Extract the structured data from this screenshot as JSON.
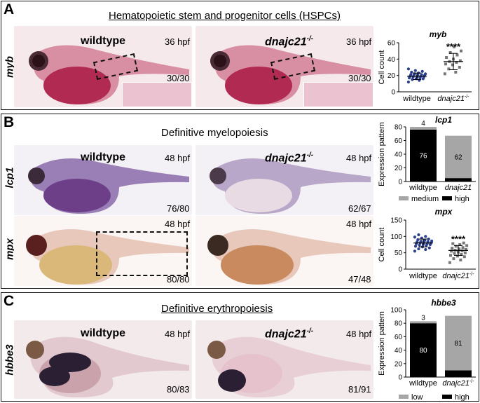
{
  "panels": [
    {
      "letter": "A",
      "title": "Hematopoietic stem and progenitor cells (HSPCs)",
      "rows": [
        {
          "label": "myb",
          "images": [
            {
              "genotype": "wildtype",
              "stage": "36 hpf",
              "count": "30/30"
            },
            {
              "genotype": "dnajc21",
              "genotype_sup": "-/-",
              "stage": "36 hpf",
              "count": "30/30"
            }
          ]
        }
      ]
    },
    {
      "letter": "B",
      "title": "Definitive myelopoiesis",
      "rows": [
        {
          "label": "lcp1",
          "images": [
            {
              "genotype": "wildtype",
              "stage": "48 hpf",
              "count": "76/80"
            },
            {
              "genotype": "dnajc21",
              "genotype_sup": "-/-",
              "stage": "48 hpf",
              "count": "62/67"
            }
          ]
        },
        {
          "label": "mpx",
          "images": [
            {
              "genotype": "",
              "stage": "48 hpf",
              "count": "80/80"
            },
            {
              "genotype": "",
              "stage": "48 hpf",
              "count": "47/48"
            }
          ]
        }
      ]
    },
    {
      "letter": "C",
      "title": "Definitive erythropoiesis",
      "rows": [
        {
          "label": "hbbe3",
          "images": [
            {
              "genotype": "wildtype",
              "stage": "48 hpf",
              "count": "80/83"
            },
            {
              "genotype": "dnajc21",
              "genotype_sup": "-/-",
              "stage": "48 hpf",
              "count": "81/91"
            }
          ]
        }
      ]
    }
  ],
  "chart_data": [
    {
      "type": "scatter",
      "title": "myb",
      "ylabel": "Cell count",
      "ylim": [
        0,
        60
      ],
      "yticks": [
        0,
        20,
        40,
        60
      ],
      "categories": [
        "wildtype",
        "dnajc21-/-"
      ],
      "significance": "****",
      "colors": [
        "#2b3f8c",
        "#777777"
      ],
      "series": [
        {
          "values": [
            12,
            14,
            15,
            16,
            16,
            17,
            17,
            18,
            18,
            18,
            19,
            19,
            20,
            20,
            20,
            21,
            21,
            22,
            22,
            23,
            24,
            25,
            26,
            28
          ],
          "mean": 19,
          "sd": 4
        },
        {
          "values": [
            22,
            24,
            28,
            30,
            33,
            34,
            36,
            37,
            38,
            40,
            42,
            45,
            48,
            50,
            55
          ],
          "mean": 37,
          "sd": 10
        }
      ]
    },
    {
      "type": "bar",
      "stacked": true,
      "title": "lcp1",
      "ylabel": "Expression pattern",
      "ylim": [
        0,
        80
      ],
      "yticks": [
        0,
        20,
        40,
        60,
        80
      ],
      "categories": [
        "wildtype",
        "dnajc21"
      ],
      "series": [
        {
          "name": "high",
          "values": [
            76,
            5
          ],
          "color": "#000000"
        },
        {
          "name": "medium",
          "values": [
            4,
            62
          ],
          "color": "#a6a6a6"
        }
      ],
      "legend_position": "bottom"
    },
    {
      "type": "scatter",
      "title": "mpx",
      "ylabel": "Cell count",
      "ylim": [
        0,
        150
      ],
      "yticks": [
        0,
        50,
        100,
        150
      ],
      "categories": [
        "wildtype",
        "dnajc21-/-"
      ],
      "significance": "****",
      "colors": [
        "#2b3f8c",
        "#777777"
      ],
      "series": [
        {
          "values": [
            55,
            60,
            62,
            65,
            68,
            70,
            72,
            73,
            75,
            76,
            78,
            78,
            80,
            80,
            82,
            83,
            84,
            85,
            86,
            88,
            90,
            92,
            95,
            98,
            100,
            105
          ],
          "mean": 80,
          "sd": 12
        },
        {
          "values": [
            20,
            28,
            32,
            38,
            40,
            42,
            45,
            48,
            50,
            52,
            55,
            56,
            58,
            60,
            62,
            64,
            66,
            70,
            72,
            75,
            78,
            80
          ],
          "mean": 57,
          "sd": 15
        }
      ]
    },
    {
      "type": "bar",
      "stacked": true,
      "title": "hbbe3",
      "ylabel": "Expression pattern",
      "ylim": [
        0,
        100
      ],
      "yticks": [
        0,
        20,
        40,
        60,
        80,
        100
      ],
      "categories": [
        "wildtype",
        "dnajc21-/-"
      ],
      "series": [
        {
          "name": "high",
          "values": [
            80,
            10
          ],
          "color": "#000000"
        },
        {
          "name": "low",
          "values": [
            3,
            81
          ],
          "color": "#a6a6a6"
        }
      ],
      "legend_position": "bottom"
    }
  ]
}
